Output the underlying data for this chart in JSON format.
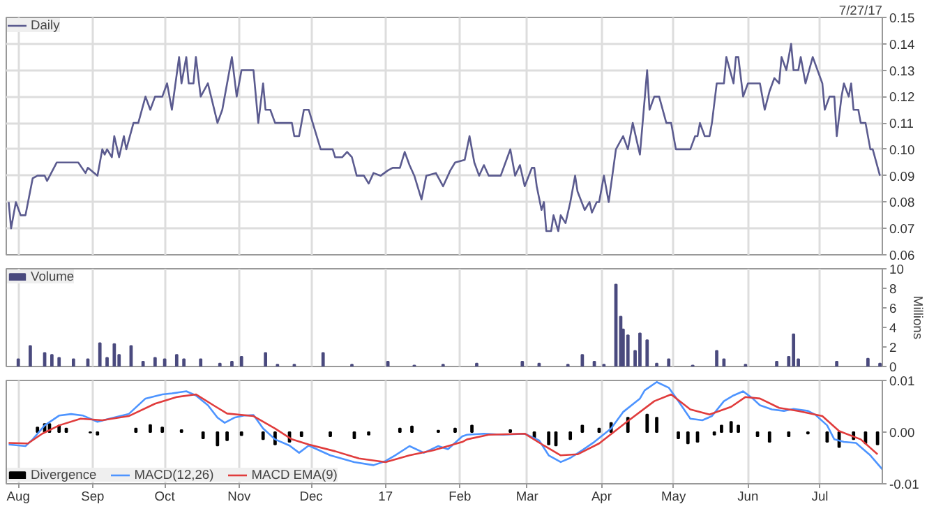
{
  "chart_data": [
    {
      "type": "line",
      "annotations": [
        "7/27/17"
      ],
      "legend": "top left",
      "grid": true,
      "tick_labels": "y",
      "xlim": [
        "2016-07-27",
        "2017-07-27"
      ],
      "xticks": [
        {
          "value": "2016-08-01",
          "label": null
        },
        {
          "value": "2016-09-01",
          "label": null
        },
        {
          "value": "2016-10-01",
          "label": null
        },
        {
          "value": "2016-11-01",
          "label": null
        },
        {
          "value": "2016-12-01",
          "label": null
        },
        {
          "value": "2017-01-01",
          "label": null
        },
        {
          "value": "2017-02-01",
          "label": null
        },
        {
          "value": "2017-03-01",
          "label": null
        },
        {
          "value": "2017-04-01",
          "label": null
        },
        {
          "value": "2017-05-01",
          "label": null
        },
        {
          "value": "2017-06-01",
          "label": null
        },
        {
          "value": "2017-07-01",
          "label": null
        }
      ],
      "ylim": [
        0.06,
        0.15
      ],
      "yticks": [
        {
          "value": 0.06,
          "label": "0.06"
        },
        {
          "value": 0.07,
          "label": "0.07"
        },
        {
          "value": 0.08,
          "label": "0.08"
        },
        {
          "value": 0.09,
          "label": "0.09"
        },
        {
          "value": 0.1,
          "label": "0.10"
        },
        {
          "value": 0.11,
          "label": "0.11"
        },
        {
          "value": 0.12,
          "label": "0.12"
        },
        {
          "value": 0.13,
          "label": "0.13"
        },
        {
          "value": 0.14,
          "label": "0.14"
        },
        {
          "value": 0.15,
          "label": "0.15"
        }
      ],
      "series": [
        {
          "name": "Daily",
          "color": "#5b5b8f",
          "x": [
            "2016-07-28",
            "2016-07-29",
            "2016-07-31",
            "2016-08-02",
            "2016-08-04",
            "2016-08-07",
            "2016-08-09",
            "2016-08-12",
            "2016-08-13",
            "2016-08-17",
            "2016-08-26",
            "2016-08-29",
            "2016-08-30",
            "2016-09-03",
            "2016-09-05",
            "2016-09-06",
            "2016-09-07",
            "2016-09-09",
            "2016-09-10",
            "2016-09-12",
            "2016-09-14",
            "2016-09-15",
            "2016-09-18",
            "2016-09-20",
            "2016-09-23",
            "2016-09-25",
            "2016-09-27",
            "2016-09-30",
            "2016-10-02",
            "2016-10-04",
            "2016-10-07",
            "2016-10-08",
            "2016-10-10",
            "2016-10-11",
            "2016-10-13",
            "2016-10-14",
            "2016-10-16",
            "2016-10-19",
            "2016-10-23",
            "2016-10-25",
            "2016-10-29",
            "2016-10-31",
            "2016-11-02",
            "2016-11-07",
            "2016-11-09",
            "2016-11-11",
            "2016-11-12",
            "2016-11-14",
            "2016-11-16",
            "2016-11-23",
            "2016-11-24",
            "2016-11-26",
            "2016-11-28",
            "2016-11-30",
            "2016-12-05",
            "2016-12-10",
            "2016-12-11",
            "2016-12-14",
            "2016-12-16",
            "2016-12-18",
            "2016-12-20",
            "2016-12-23",
            "2016-12-25",
            "2016-12-27",
            "2016-12-30",
            "2017-01-02",
            "2017-01-04",
            "2017-01-07",
            "2017-01-09",
            "2017-01-11",
            "2017-01-13",
            "2017-01-16",
            "2017-01-18",
            "2017-01-22",
            "2017-01-25",
            "2017-01-28",
            "2017-01-30",
            "2017-02-03",
            "2017-02-05",
            "2017-02-07",
            "2017-02-09",
            "2017-02-11",
            "2017-02-13",
            "2017-02-18",
            "2017-02-20",
            "2017-02-22",
            "2017-02-24",
            "2017-02-26",
            "2017-02-28",
            "2017-03-03",
            "2017-03-04",
            "2017-03-05",
            "2017-03-07",
            "2017-03-08",
            "2017-03-09",
            "2017-03-11",
            "2017-03-12",
            "2017-03-14",
            "2017-03-15",
            "2017-03-17",
            "2017-03-19",
            "2017-03-21",
            "2017-03-22",
            "2017-03-25",
            "2017-03-27",
            "2017-03-28",
            "2017-03-30",
            "2017-03-31",
            "2017-04-02",
            "2017-04-04",
            "2017-04-07",
            "2017-04-10",
            "2017-04-12",
            "2017-04-14",
            "2017-04-17",
            "2017-04-20",
            "2017-04-21",
            "2017-04-23",
            "2017-04-25",
            "2017-04-28",
            "2017-04-30",
            "2017-05-02",
            "2017-05-08",
            "2017-05-10",
            "2017-05-11",
            "2017-05-12",
            "2017-05-14",
            "2017-05-16",
            "2017-05-17",
            "2017-05-19",
            "2017-05-22",
            "2017-05-23",
            "2017-05-26",
            "2017-05-27",
            "2017-05-28",
            "2017-05-30",
            "2017-06-01",
            "2017-06-06",
            "2017-06-08",
            "2017-06-10",
            "2017-06-12",
            "2017-06-14",
            "2017-06-15",
            "2017-06-17",
            "2017-06-19",
            "2017-06-20",
            "2017-06-22",
            "2017-06-23",
            "2017-06-25",
            "2017-06-28",
            "2017-07-02",
            "2017-07-03",
            "2017-07-05",
            "2017-07-07",
            "2017-07-08",
            "2017-07-10",
            "2017-07-11",
            "2017-07-13",
            "2017-07-14",
            "2017-07-15",
            "2017-07-17",
            "2017-07-18",
            "2017-07-20",
            "2017-07-22",
            "2017-07-23",
            "2017-07-26"
          ],
          "values": [
            0.08,
            0.07,
            0.08,
            0.075,
            0.075,
            0.089,
            0.09,
            0.09,
            0.088,
            0.095,
            0.095,
            0.091,
            0.093,
            0.09,
            0.1,
            0.098,
            0.1,
            0.097,
            0.105,
            0.097,
            0.105,
            0.1,
            0.11,
            0.11,
            0.12,
            0.115,
            0.12,
            0.12,
            0.125,
            0.115,
            0.135,
            0.125,
            0.135,
            0.125,
            0.125,
            0.135,
            0.12,
            0.125,
            0.11,
            0.115,
            0.135,
            0.12,
            0.13,
            0.13,
            0.11,
            0.125,
            0.115,
            0.115,
            0.11,
            0.11,
            0.105,
            0.105,
            0.115,
            0.115,
            0.1,
            0.1,
            0.097,
            0.097,
            0.099,
            0.097,
            0.09,
            0.09,
            0.087,
            0.091,
            0.09,
            0.092,
            0.093,
            0.093,
            0.099,
            0.094,
            0.09,
            0.081,
            0.09,
            0.091,
            0.086,
            0.092,
            0.095,
            0.096,
            0.105,
            0.095,
            0.09,
            0.094,
            0.09,
            0.09,
            0.095,
            0.1,
            0.09,
            0.094,
            0.086,
            0.093,
            0.093,
            0.086,
            0.077,
            0.08,
            0.069,
            0.069,
            0.075,
            0.069,
            0.075,
            0.072,
            0.08,
            0.09,
            0.084,
            0.077,
            0.08,
            0.076,
            0.08,
            0.08,
            0.09,
            0.08,
            0.1,
            0.105,
            0.1,
            0.11,
            0.098,
            0.13,
            0.115,
            0.12,
            0.12,
            0.11,
            0.11,
            0.1,
            0.1,
            0.105,
            0.105,
            0.11,
            0.105,
            0.105,
            0.11,
            0.125,
            0.125,
            0.135,
            0.125,
            0.135,
            0.135,
            0.12,
            0.125,
            0.125,
            0.115,
            0.122,
            0.127,
            0.125,
            0.135,
            0.13,
            0.14,
            0.13,
            0.13,
            0.135,
            0.125,
            0.135,
            0.125,
            0.115,
            0.12,
            0.12,
            0.105,
            0.12,
            0.125,
            0.12,
            0.125,
            0.115,
            0.115,
            0.11,
            0.11,
            0.1,
            0.1,
            0.09
          ]
        }
      ]
    },
    {
      "type": "bar",
      "ylabel": "Millions",
      "legend": "top left",
      "grid": "x",
      "tick_labels": "y",
      "xlim": [
        "2016-07-27",
        "2017-07-27"
      ],
      "xticks": [
        {
          "value": "2016-08-01",
          "label": null
        },
        {
          "value": "2016-09-01",
          "label": null
        },
        {
          "value": "2016-10-01",
          "label": null
        },
        {
          "value": "2016-11-01",
          "label": null
        },
        {
          "value": "2016-12-01",
          "label": null
        },
        {
          "value": "2017-01-01",
          "label": null
        },
        {
          "value": "2017-02-01",
          "label": null
        },
        {
          "value": "2017-03-01",
          "label": null
        },
        {
          "value": "2017-04-01",
          "label": null
        },
        {
          "value": "2017-05-01",
          "label": null
        },
        {
          "value": "2017-06-01",
          "label": null
        },
        {
          "value": "2017-07-01",
          "label": null
        }
      ],
      "ylim": [
        0,
        10
      ],
      "yticks": [
        0,
        2,
        4,
        6,
        8,
        10
      ],
      "series": [
        {
          "name": "Volume",
          "color": "#4a4a7e",
          "x": [
            "2016-08-01",
            "2016-08-06",
            "2016-08-12",
            "2016-08-15",
            "2016-08-18",
            "2016-08-24",
            "2016-08-30",
            "2016-09-04",
            "2016-09-07",
            "2016-09-10",
            "2016-09-12",
            "2016-09-17",
            "2016-09-22",
            "2016-09-27",
            "2016-10-01",
            "2016-10-06",
            "2016-10-09",
            "2016-10-16",
            "2016-10-24",
            "2016-10-29",
            "2016-11-02",
            "2016-11-12",
            "2016-11-17",
            "2016-11-24",
            "2016-12-06",
            "2016-12-18",
            "2017-01-02",
            "2017-01-13",
            "2017-01-25",
            "2017-02-08",
            "2017-02-27",
            "2017-03-06",
            "2017-03-18",
            "2017-03-24",
            "2017-03-29",
            "2017-04-02",
            "2017-04-07",
            "2017-04-09",
            "2017-04-10",
            "2017-04-12",
            "2017-04-15",
            "2017-04-17",
            "2017-04-20",
            "2017-04-24",
            "2017-04-29",
            "2017-05-09",
            "2017-05-19",
            "2017-05-22",
            "2017-05-31",
            "2017-06-13",
            "2017-06-18",
            "2017-06-20",
            "2017-06-22",
            "2017-07-08",
            "2017-07-21",
            "2017-07-26"
          ],
          "values": [
            0.75,
            2.1,
            1.4,
            1.2,
            0.9,
            0.75,
            0.75,
            2.4,
            0.9,
            2.3,
            1.2,
            2.1,
            0.5,
            0.9,
            0.75,
            1.2,
            0.75,
            0.75,
            0.3,
            0.5,
            1.0,
            1.4,
            0.2,
            0.2,
            1.4,
            0.2,
            0.5,
            0.1,
            0.2,
            0.3,
            0.5,
            0.3,
            0.2,
            1.2,
            0.5,
            0.2,
            8.4,
            5.1,
            3.8,
            3.2,
            1.6,
            3.4,
            2.7,
            0.3,
            0.75,
            0.1,
            1.6,
            0.75,
            0.2,
            0.5,
            1.0,
            3.3,
            0.75,
            0.5,
            0.8,
            0.3
          ]
        }
      ]
    },
    {
      "type": "line",
      "legend": "bottom left",
      "grid": "x",
      "xlim": [
        "2016-07-27",
        "2017-07-27"
      ],
      "xticks": [
        {
          "value": "2016-08-01",
          "label": "Aug"
        },
        {
          "value": "2016-09-01",
          "label": "Sep"
        },
        {
          "value": "2016-10-01",
          "label": "Oct"
        },
        {
          "value": "2016-11-01",
          "label": "Nov"
        },
        {
          "value": "2016-12-01",
          "label": "Dec"
        },
        {
          "value": "2017-01-01",
          "label": "17"
        },
        {
          "value": "2017-02-01",
          "label": "Feb"
        },
        {
          "value": "2017-03-01",
          "label": "Mar"
        },
        {
          "value": "2017-04-01",
          "label": "Apr"
        },
        {
          "value": "2017-05-01",
          "label": "May"
        },
        {
          "value": "2017-06-01",
          "label": "Jun"
        },
        {
          "value": "2017-07-01",
          "label": "Jul"
        }
      ],
      "ylim": [
        -0.01,
        0.01
      ],
      "yticks": [
        {
          "value": 0.01,
          "label": "0.01"
        },
        {
          "value": 0,
          "label": "0.00"
        },
        {
          "value": -0.01,
          "label": "-0.01"
        }
      ],
      "series": [
        {
          "name": "Divergence",
          "type": "bar",
          "color": "#000000",
          "x": [
            "2016-08-09",
            "2016-08-12",
            "2016-08-14",
            "2016-08-18",
            "2016-08-21",
            "2016-08-31",
            "2016-09-03",
            "2016-09-19",
            "2016-09-25",
            "2016-09-30",
            "2016-10-08",
            "2016-10-17",
            "2016-10-23",
            "2016-10-27",
            "2016-11-02",
            "2016-11-11",
            "2016-11-16",
            "2016-11-22",
            "2016-11-27",
            "2016-12-09",
            "2016-12-19",
            "2016-12-25",
            "2017-01-07",
            "2017-01-12",
            "2017-01-23",
            "2017-01-30",
            "2017-02-06",
            "2017-02-22",
            "2017-03-04",
            "2017-03-10",
            "2017-03-13",
            "2017-03-19",
            "2017-03-24",
            "2017-03-31",
            "2017-04-05",
            "2017-04-12",
            "2017-04-20",
            "2017-04-24",
            "2017-05-03",
            "2017-05-07",
            "2017-05-11",
            "2017-05-18",
            "2017-05-21",
            "2017-05-25",
            "2017-05-28",
            "2017-06-05",
            "2017-06-10",
            "2017-06-18",
            "2017-06-26",
            "2017-07-04",
            "2017-07-09",
            "2017-07-15",
            "2017-07-20",
            "2017-07-25"
          ],
          "values": [
            0.0009,
            0.0016,
            0.0016,
            0.0013,
            0.0007,
            -0.0001,
            -0.0005,
            0.0007,
            0.0014,
            0.0009,
            0.0004,
            -0.0012,
            -0.0026,
            -0.0016,
            -0.0006,
            -0.0014,
            -0.0024,
            -0.0019,
            -0.0008,
            -0.0008,
            -0.0012,
            -0.0005,
            0.0007,
            0.0011,
            0.0003,
            0.0007,
            0.0013,
            0.0004,
            -0.0011,
            -0.0024,
            -0.0026,
            -0.0014,
            0.0013,
            0.0007,
            0.0018,
            0.0028,
            0.0034,
            0.0028,
            -0.0012,
            -0.0022,
            -0.0019,
            -0.0005,
            0.0013,
            0.002,
            0.0013,
            -0.0008,
            -0.0019,
            -0.0008,
            -0.0003,
            -0.0019,
            -0.0029,
            -0.0014,
            -0.0022,
            -0.0024
          ]
        },
        {
          "name": "MACD(12,26)",
          "color": "#4d94ff",
          "x": [
            "2016-07-28",
            "2016-08-04",
            "2016-08-07",
            "2016-08-12",
            "2016-08-18",
            "2016-08-23",
            "2016-08-28",
            "2016-09-03",
            "2016-09-08",
            "2016-09-16",
            "2016-09-23",
            "2016-09-30",
            "2016-10-04",
            "2016-10-07",
            "2016-10-10",
            "2016-10-14",
            "2016-10-19",
            "2016-10-23",
            "2016-10-26",
            "2016-10-30",
            "2016-11-03",
            "2016-11-07",
            "2016-11-11",
            "2016-11-16",
            "2016-11-22",
            "2016-11-26",
            "2016-11-30",
            "2016-12-09",
            "2016-12-19",
            "2016-12-27",
            "2017-01-01",
            "2017-01-05",
            "2017-01-11",
            "2017-01-17",
            "2017-01-23",
            "2017-01-27",
            "2017-02-02",
            "2017-02-04",
            "2017-02-11",
            "2017-02-19",
            "2017-02-28",
            "2017-03-06",
            "2017-03-10",
            "2017-03-15",
            "2017-03-19",
            "2017-03-24",
            "2017-03-29",
            "2017-04-05",
            "2017-04-10",
            "2017-04-17",
            "2017-04-19",
            "2017-04-24",
            "2017-04-29",
            "2017-05-03",
            "2017-05-08",
            "2017-05-13",
            "2017-05-17",
            "2017-05-22",
            "2017-05-26",
            "2017-05-30",
            "2017-06-03",
            "2017-06-06",
            "2017-06-11",
            "2017-06-16",
            "2017-06-20",
            "2017-06-26",
            "2017-06-29",
            "2017-07-04",
            "2017-07-07",
            "2017-07-11",
            "2017-07-16",
            "2017-07-22",
            "2017-07-27"
          ],
          "values": [
            -0.0024,
            -0.0027,
            -0.0014,
            0.0013,
            0.0032,
            0.0035,
            0.0032,
            0.002,
            0.0026,
            0.0035,
            0.0065,
            0.0073,
            0.0075,
            0.0077,
            0.0079,
            0.0071,
            0.0052,
            0.0028,
            0.0018,
            0.0028,
            0.0032,
            0.0033,
            0.0007,
            -0.0014,
            -0.0026,
            -0.004,
            -0.0026,
            -0.0045,
            -0.0058,
            -0.0064,
            -0.0056,
            -0.0045,
            -0.0027,
            -0.004,
            -0.0027,
            -0.0033,
            -0.0008,
            -0.0005,
            -0.0003,
            -0.0005,
            -0.0003,
            -0.0016,
            -0.0045,
            -0.0058,
            -0.005,
            -0.0035,
            -0.0019,
            0.0007,
            0.0039,
            0.0065,
            0.0081,
            0.0097,
            0.0086,
            0.006,
            0.0026,
            0.0023,
            0.0031,
            0.006,
            0.0071,
            0.0079,
            0.0065,
            0.0052,
            0.0044,
            0.0041,
            0.0045,
            0.0041,
            0.0034,
            0.0013,
            -0.0014,
            -0.0019,
            -0.0021,
            -0.0045,
            -0.0072
          ]
        },
        {
          "name": "MACD EMA(9)",
          "color": "#e03c3c",
          "x": [
            "2016-07-28",
            "2016-08-05",
            "2016-08-11",
            "2016-08-18",
            "2016-08-27",
            "2016-09-05",
            "2016-09-16",
            "2016-09-27",
            "2016-10-06",
            "2016-10-14",
            "2016-10-22",
            "2016-10-27",
            "2016-11-07",
            "2016-11-16",
            "2016-11-23",
            "2016-11-30",
            "2016-12-11",
            "2016-12-21",
            "2017-01-01",
            "2017-01-11",
            "2017-01-21",
            "2017-02-02",
            "2017-02-04",
            "2017-02-13",
            "2017-02-28",
            "2017-03-08",
            "2017-03-15",
            "2017-03-22",
            "2017-03-31",
            "2017-04-11",
            "2017-04-23",
            "2017-04-30",
            "2017-05-08",
            "2017-05-16",
            "2017-05-25",
            "2017-05-31",
            "2017-06-06",
            "2017-06-14",
            "2017-06-22",
            "2017-07-02",
            "2017-07-09",
            "2017-07-18",
            "2017-07-25"
          ],
          "values": [
            -0.0021,
            -0.0022,
            -0.0003,
            0.0013,
            0.0026,
            0.0023,
            0.0031,
            0.0055,
            0.0068,
            0.0073,
            0.005,
            0.0036,
            0.0031,
            0.0007,
            -0.0014,
            -0.0024,
            -0.0037,
            -0.0051,
            -0.0058,
            -0.0045,
            -0.0035,
            -0.0019,
            -0.0014,
            -0.0005,
            -0.0003,
            -0.0026,
            -0.0045,
            -0.0043,
            -0.0022,
            0.0018,
            0.006,
            0.0073,
            0.0044,
            0.0034,
            0.0049,
            0.0068,
            0.0065,
            0.0047,
            0.0041,
            0.0031,
            0.0002,
            -0.0014,
            -0.0043
          ]
        }
      ]
    }
  ]
}
